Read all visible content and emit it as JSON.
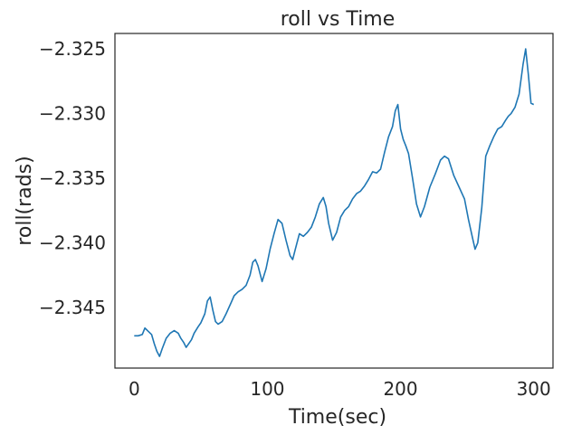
{
  "chart_data": {
    "type": "line",
    "title": "roll vs Time",
    "xlabel": "Time(sec)",
    "ylabel": "roll(rads)",
    "xlim": [
      -14.5,
      314.5
    ],
    "ylim": [
      -2.3497,
      -2.3238
    ],
    "xticks": [
      0,
      100,
      200,
      300
    ],
    "xtick_labels": [
      "0",
      "100",
      "200",
      "300"
    ],
    "yticks": [
      -2.325,
      -2.33,
      -2.335,
      -2.34,
      -2.345
    ],
    "ytick_labels": [
      "−2.325",
      "−2.330",
      "−2.335",
      "−2.340",
      "−2.345"
    ],
    "grid": false,
    "line_color": "#1f77b4",
    "series": [
      {
        "x": [
          0,
          3,
          6,
          8,
          10,
          13,
          15,
          17,
          19,
          21,
          24,
          27,
          30,
          33,
          35,
          37,
          39,
          41,
          43,
          45,
          48,
          50,
          53,
          55,
          57,
          59,
          61,
          63,
          66,
          69,
          72,
          75,
          78,
          81,
          84,
          87,
          89,
          91,
          93,
          96,
          99,
          102,
          105,
          108,
          111,
          114,
          117,
          119,
          121,
          124,
          127,
          130,
          133,
          136,
          139,
          142,
          144,
          146,
          149,
          152,
          155,
          158,
          161,
          164,
          167,
          170,
          173,
          176,
          179,
          182,
          185,
          188,
          191,
          194,
          196,
          198,
          200,
          202,
          204,
          206,
          209,
          212,
          215,
          218,
          222,
          226,
          230,
          233,
          236,
          240,
          244,
          248,
          251,
          254,
          256,
          258,
          261,
          264,
          267,
          270,
          273,
          276,
          279,
          281,
          283,
          286,
          289,
          292,
          294,
          296,
          298,
          300
        ],
        "y": [
          -2.3472,
          -2.3472,
          -2.3471,
          -2.3466,
          -2.3468,
          -2.3471,
          -2.3478,
          -2.3484,
          -2.3488,
          -2.3482,
          -2.3474,
          -2.347,
          -2.3468,
          -2.347,
          -2.3474,
          -2.3477,
          -2.3481,
          -2.3478,
          -2.3475,
          -2.347,
          -2.3465,
          -2.3462,
          -2.3455,
          -2.3445,
          -2.3442,
          -2.3452,
          -2.3461,
          -2.3463,
          -2.3461,
          -2.3455,
          -2.3448,
          -2.3441,
          -2.3438,
          -2.3436,
          -2.3433,
          -2.3425,
          -2.3415,
          -2.3413,
          -2.3418,
          -2.343,
          -2.342,
          -2.3405,
          -2.3393,
          -2.3382,
          -2.3385,
          -2.3398,
          -2.341,
          -2.3413,
          -2.3405,
          -2.3393,
          -2.3395,
          -2.3392,
          -2.3388,
          -2.338,
          -2.337,
          -2.3365,
          -2.3372,
          -2.3385,
          -2.3398,
          -2.3392,
          -2.338,
          -2.3375,
          -2.3372,
          -2.3366,
          -2.3362,
          -2.336,
          -2.3356,
          -2.3351,
          -2.3345,
          -2.3346,
          -2.3343,
          -2.333,
          -2.3318,
          -2.331,
          -2.3298,
          -2.3293,
          -2.3312,
          -2.332,
          -2.3325,
          -2.3331,
          -2.335,
          -2.337,
          -2.338,
          -2.3372,
          -2.3357,
          -2.3347,
          -2.3336,
          -2.3333,
          -2.3335,
          -2.3348,
          -2.3357,
          -2.3366,
          -2.3382,
          -2.3396,
          -2.3405,
          -2.34,
          -2.3373,
          -2.3333,
          -2.3325,
          -2.3318,
          -2.3312,
          -2.331,
          -2.3305,
          -2.3302,
          -2.33,
          -2.3295,
          -2.3285,
          -2.3262,
          -2.325,
          -2.327,
          -2.3292,
          -2.3293
        ]
      }
    ]
  }
}
